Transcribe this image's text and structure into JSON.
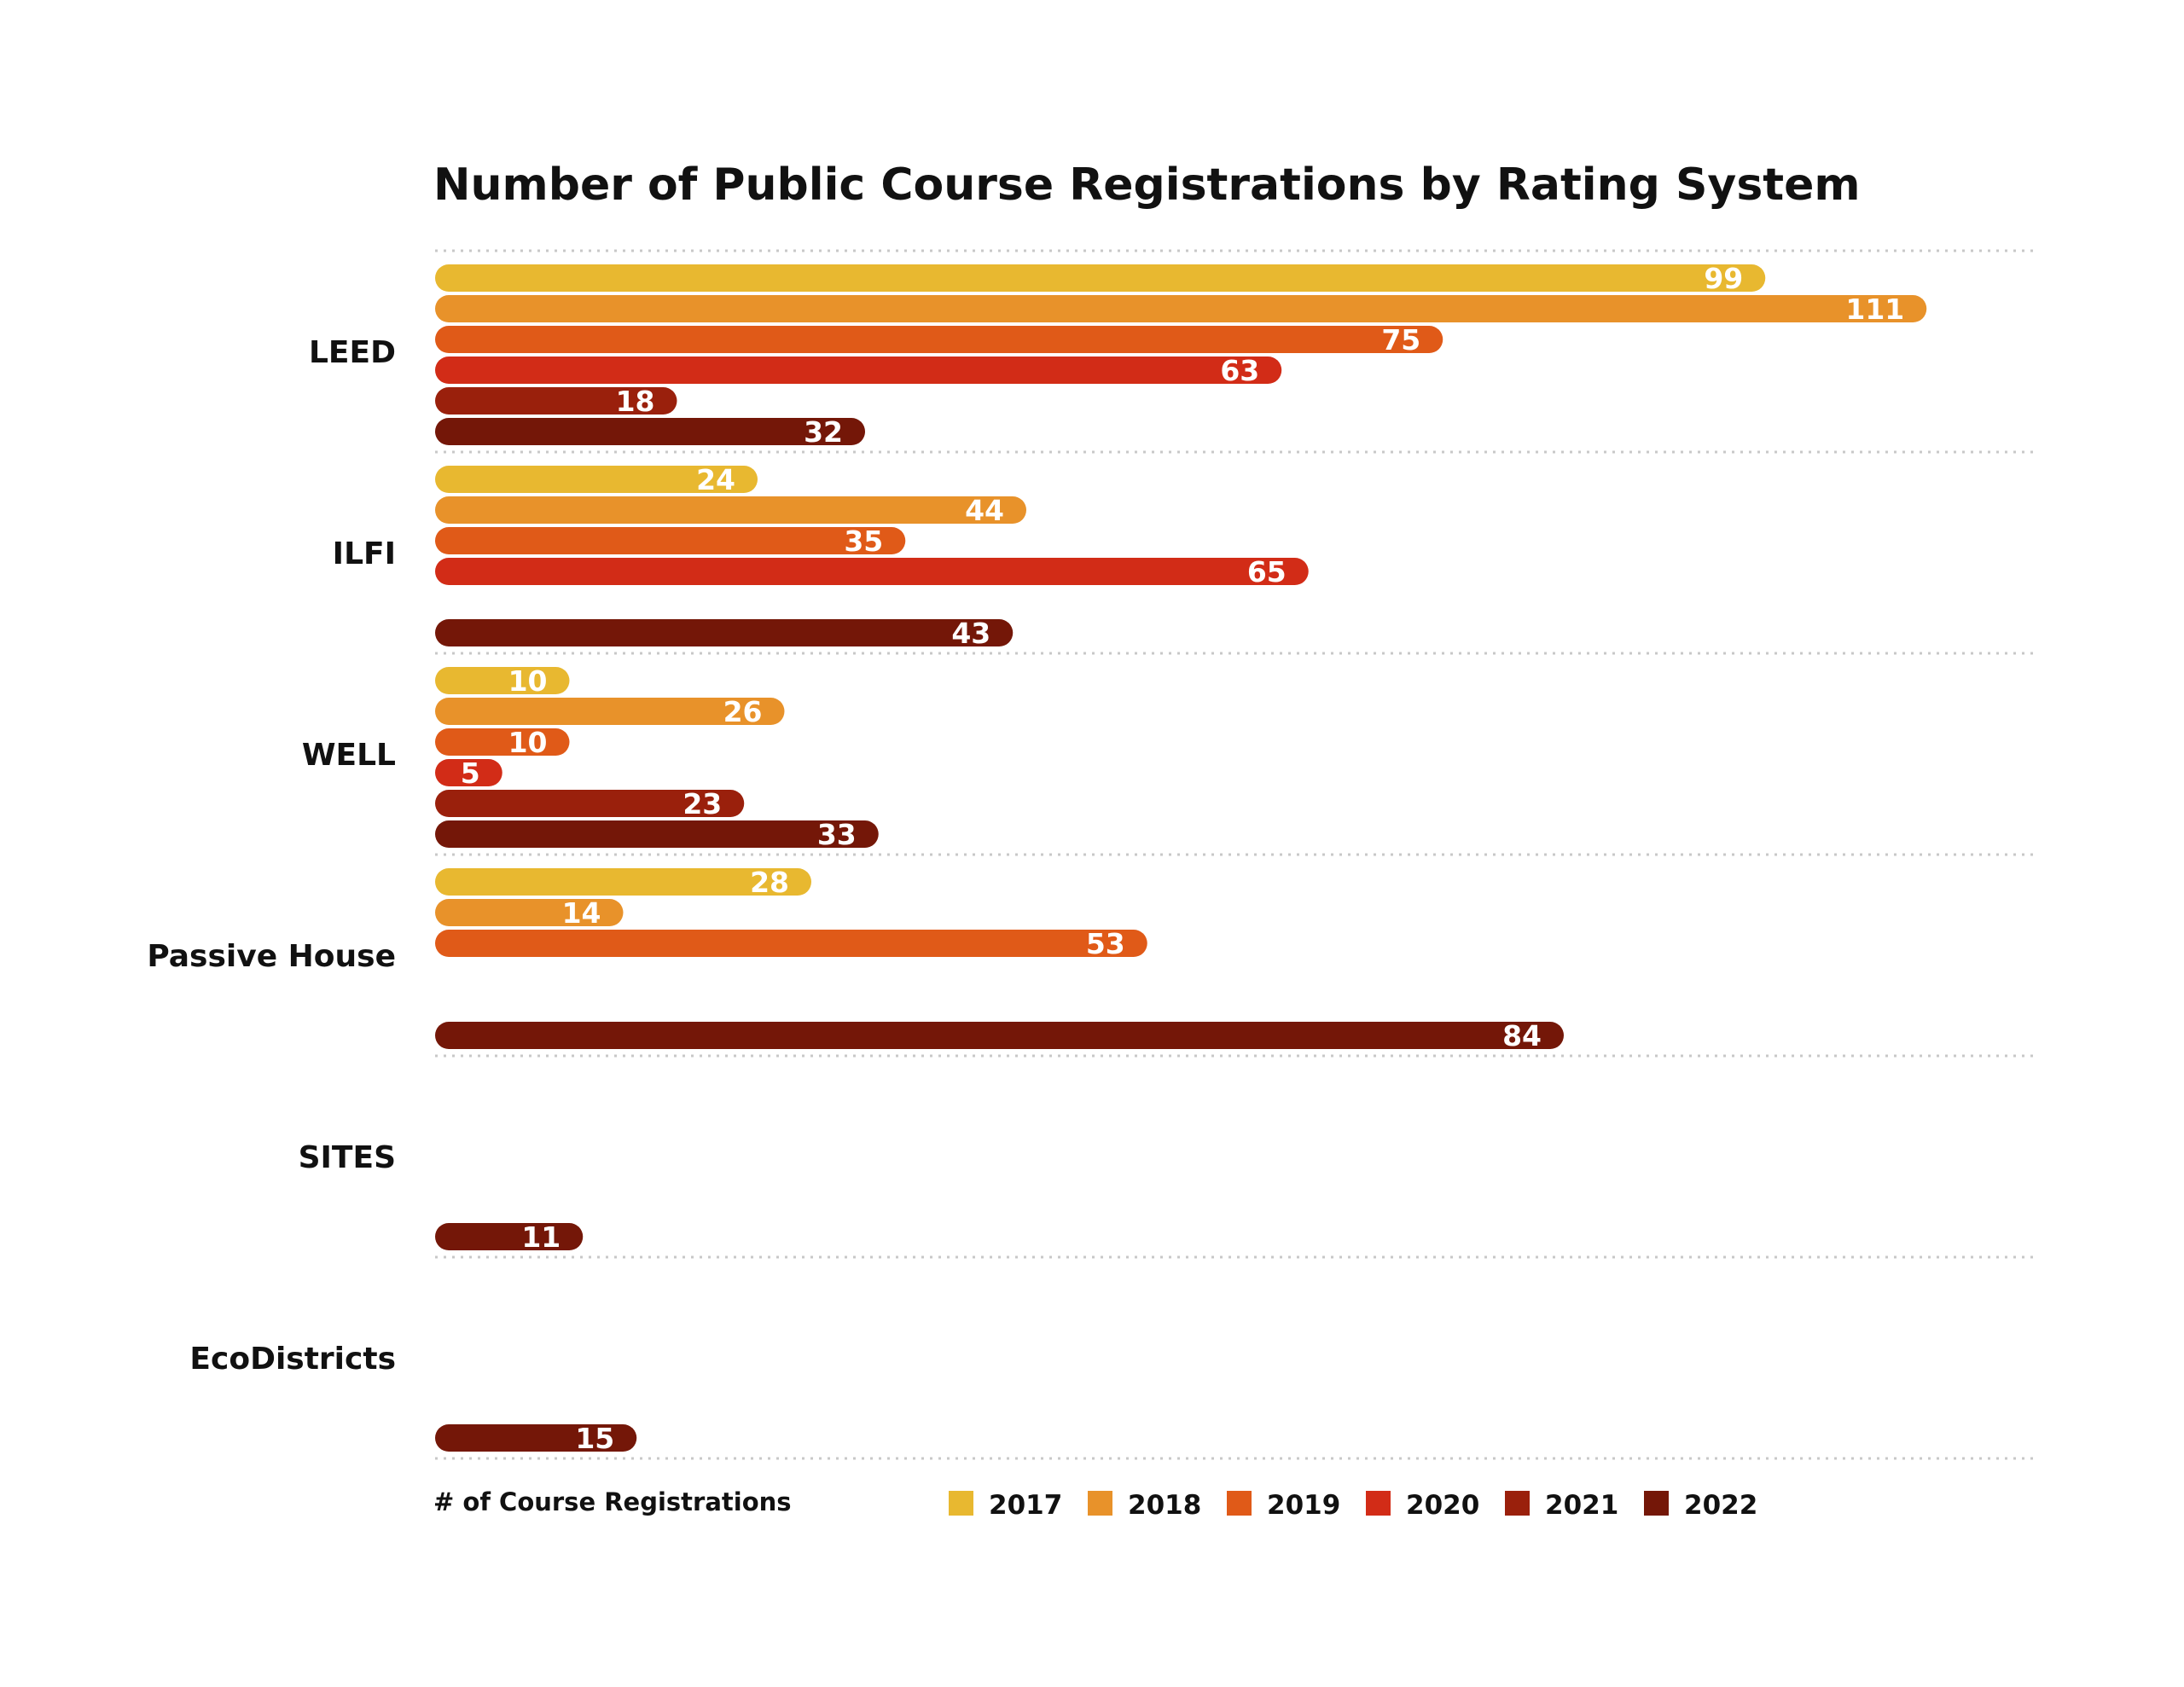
{
  "chart_data": {
    "type": "bar",
    "orientation": "horizontal",
    "title": "Number of Public Course Registrations by Rating System",
    "xlabel": "# of Course Registrations",
    "ylabel": "",
    "categories": [
      "LEED",
      "ILFI",
      "WELL",
      "Passive House",
      "SITES",
      "EcoDistricts"
    ],
    "series": [
      {
        "name": "2017",
        "color": "#E8B830",
        "values": [
          99,
          24,
          10,
          28,
          null,
          null
        ]
      },
      {
        "name": "2018",
        "color": "#E8922A",
        "values": [
          111,
          44,
          26,
          14,
          null,
          null
        ]
      },
      {
        "name": "2019",
        "color": "#E05A18",
        "values": [
          75,
          35,
          10,
          53,
          null,
          null
        ]
      },
      {
        "name": "2020",
        "color": "#D22C17",
        "values": [
          63,
          65,
          5,
          null,
          null,
          null
        ]
      },
      {
        "name": "2021",
        "color": "#9A200C",
        "values": [
          18,
          null,
          23,
          null,
          null,
          null
        ]
      },
      {
        "name": "2022",
        "color": "#741708",
        "values": [
          32,
          43,
          33,
          84,
          11,
          15
        ]
      }
    ],
    "xlim": [
      0,
      120
    ],
    "grid": false,
    "legend_position": "bottom"
  }
}
